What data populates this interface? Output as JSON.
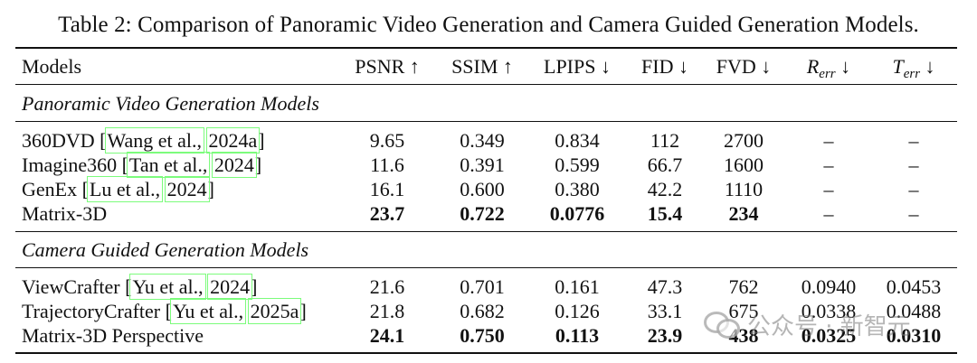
{
  "caption": "Table 2: Comparison of Panoramic Video Generation and Camera Guided Generation Models.",
  "header": {
    "models": "Models",
    "psnr": "PSNR ↑",
    "ssim": "SSIM ↑",
    "lpips": "LPIPS ↓",
    "fid": "FID ↓",
    "fvd": "FVD ↓",
    "rerr_base": "R",
    "rerr_sub": "err",
    "terr_base": "T",
    "terr_sub": "err",
    "down_arrow": "↓"
  },
  "sections": [
    {
      "title": "Panoramic Video Generation Models",
      "rows": [
        {
          "name": "360DVD",
          "cite_a": "Wang et al.,",
          "cite_b": "2024a",
          "values": [
            "9.65",
            "0.349",
            "0.834",
            "112",
            "2700",
            "–",
            "–"
          ]
        },
        {
          "name": "Imagine360",
          "cite_a": "Tan et al.,",
          "cite_b": "2024",
          "values": [
            "11.6",
            "0.391",
            "0.599",
            "66.7",
            "1600",
            "–",
            "–"
          ]
        },
        {
          "name": "GenEx",
          "cite_a": "Lu et al.,",
          "cite_b": "2024",
          "values": [
            "16.1",
            "0.600",
            "0.380",
            "42.2",
            "1110",
            "–",
            "–"
          ]
        },
        {
          "name": "Matrix-3D",
          "values": [
            "23.7",
            "0.722",
            "0.0776",
            "15.4",
            "234",
            "–",
            "–"
          ]
        }
      ]
    },
    {
      "title": "Camera Guided Generation Models",
      "rows": [
        {
          "name": "ViewCrafter",
          "cite_a": "Yu et al.,",
          "cite_b": "2024",
          "values": [
            "21.6",
            "0.701",
            "0.161",
            "47.3",
            "762",
            "0.0940",
            "0.0453"
          ]
        },
        {
          "name": "TrajectoryCrafter",
          "cite_a": "Yu et al.,",
          "cite_b": "2025a",
          "values": [
            "21.8",
            "0.682",
            "0.126",
            "33.1",
            "675",
            "0.0338",
            "0.0488"
          ]
        },
        {
          "name": "Matrix-3D Perspective",
          "values": [
            "24.1",
            "0.750",
            "0.113",
            "23.9",
            "438",
            "0.0325",
            "0.0310"
          ]
        }
      ]
    }
  ],
  "watermark": {
    "text": "公众号 · 新智元",
    "icon": "wechat-icon"
  }
}
